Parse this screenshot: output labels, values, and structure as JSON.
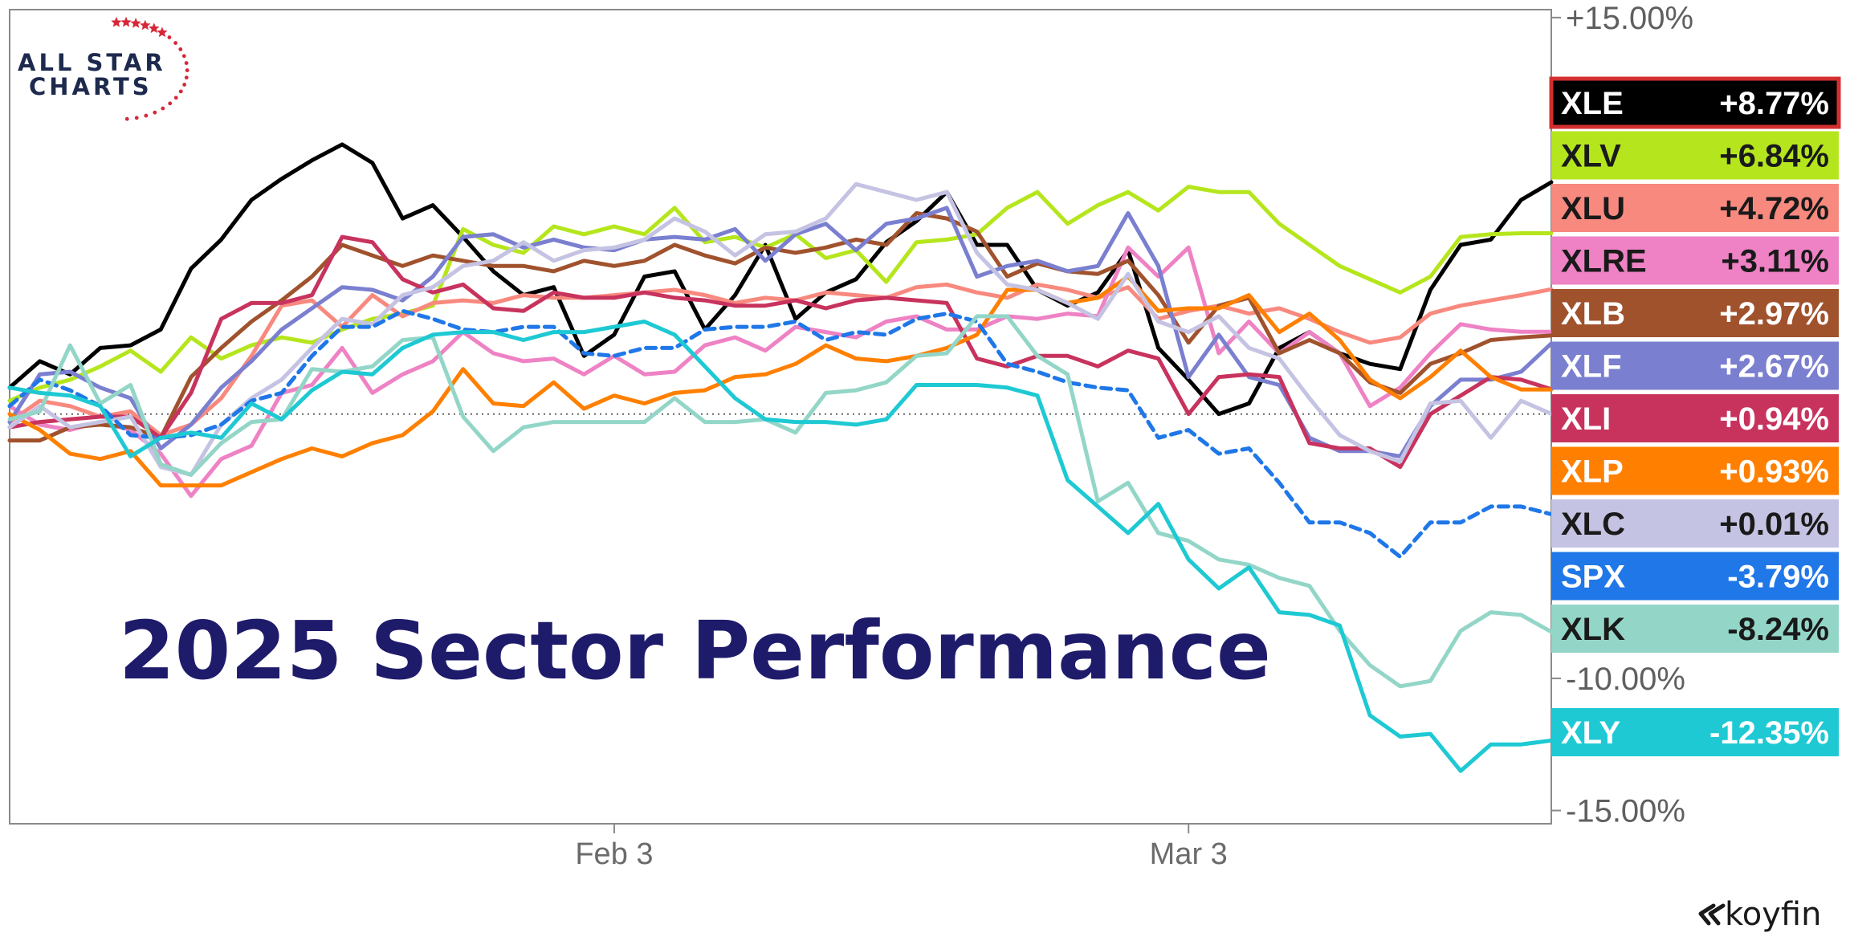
{
  "logo": {
    "line1": "ALL STAR",
    "line2": "CHARTS"
  },
  "brand": {
    "name": "koyfin"
  },
  "chart_data": {
    "type": "line",
    "title": "2025 Sector Performance",
    "xlabel": "",
    "ylabel": "",
    "x_ticks": [
      {
        "label": "Feb 3",
        "index": 20
      },
      {
        "label": "Mar 3",
        "index": 39
      }
    ],
    "y_ticks": [
      {
        "label": "+15.00%",
        "value": 15
      },
      {
        "label": "-10.00%",
        "value": -10
      },
      {
        "label": "-15.00%",
        "value": -15
      }
    ],
    "ylim": [
      -15.5,
      15.3
    ],
    "baseline": 0,
    "grid": false,
    "legend_position": "right",
    "series": [
      {
        "name": "XLE",
        "label": "+8.77%",
        "color": "#000000",
        "text_color": "#ffffff",
        "border": "#d32f2f",
        "dashed": false,
        "values": [
          1,
          2,
          1.5,
          2.5,
          2.6,
          3.2,
          5.5,
          6.6,
          8.1,
          8.9,
          9.6,
          10.2,
          9.5,
          7.4,
          7.9,
          6.7,
          5.4,
          4.5,
          4.8,
          2.2,
          3,
          5.2,
          5.4,
          3.2,
          4.5,
          6.4,
          3.6,
          4.6,
          5.1,
          6.5,
          7.3,
          8.4,
          6.4,
          6.4,
          4.7,
          4.1,
          4.6,
          6.2,
          2.5,
          1.3,
          0,
          0.4,
          2.5,
          3.1,
          2.3,
          1.9,
          1.7,
          4.7,
          6.4,
          6.6,
          8.1,
          8.77
        ]
      },
      {
        "name": "XLV",
        "label": "+6.84%",
        "color": "#b5e61d",
        "text_color": "#1a1a1a",
        "dashed": false,
        "values": [
          0.5,
          1,
          1.3,
          1.8,
          2.4,
          1.6,
          2.9,
          2.1,
          2.6,
          2.9,
          2.7,
          3.2,
          3.6,
          3.8,
          4.1,
          7,
          6.4,
          6.1,
          7.1,
          6.8,
          7.1,
          6.8,
          7.8,
          6.5,
          6.7,
          6.3,
          6.8,
          5.9,
          6.2,
          5,
          6.5,
          6.6,
          6.8,
          7.8,
          8.4,
          7.2,
          7.9,
          8.4,
          7.7,
          8.6,
          8.4,
          8.4,
          7.2,
          6.4,
          5.6,
          5.1,
          4.6,
          5.2,
          6.7,
          6.8,
          6.84,
          6.84
        ]
      },
      {
        "name": "XLU",
        "label": "+4.72%",
        "color": "#f8897e",
        "text_color": "#1a1a1a",
        "dashed": false,
        "values": [
          -0.3,
          0.5,
          0.3,
          -0.1,
          0.1,
          -0.8,
          -0.4,
          0.6,
          2.2,
          4.1,
          4.3,
          3.3,
          4.5,
          3.7,
          4.2,
          4.3,
          4.2,
          4.5,
          4.4,
          4.4,
          4.5,
          4.6,
          4.7,
          4.5,
          4.2,
          4.4,
          4.3,
          4.6,
          4.5,
          4.4,
          4.8,
          4.9,
          4.6,
          4.4,
          4.9,
          4.7,
          4.4,
          4.8,
          3.6,
          3.9,
          4.1,
          3.8,
          4,
          3.6,
          3.1,
          2.7,
          2.9,
          3.8,
          4.1,
          4.3,
          4.5,
          4.72
        ]
      },
      {
        "name": "XLRE",
        "label": "+3.11%",
        "color": "#ee82c4",
        "text_color": "#1a1a1a",
        "dashed": false,
        "values": [
          0.3,
          -0.4,
          -0.6,
          -0.3,
          -0.6,
          -1.5,
          -3.1,
          -1.7,
          -1.2,
          0.8,
          1.1,
          2.5,
          0.8,
          1.5,
          2,
          3.1,
          2.3,
          2,
          2.1,
          1.5,
          2.2,
          1.5,
          1.6,
          2.6,
          2.9,
          2.4,
          3.3,
          3.1,
          2.9,
          3.5,
          3.7,
          3.2,
          3.2,
          3.7,
          3.6,
          3.8,
          3.7,
          6.3,
          5.2,
          6.3,
          2.3,
          3.5,
          2.3,
          3.1,
          2.3,
          0.3,
          1,
          2.3,
          3.4,
          3.2,
          3.11,
          3.11
        ]
      },
      {
        "name": "XLB",
        "label": "+2.97%",
        "color": "#a0522d",
        "text_color": "#ffffff",
        "dashed": false,
        "values": [
          -1,
          -1,
          -0.5,
          -0.4,
          -0.5,
          -0.9,
          1.4,
          2.5,
          3.5,
          4.3,
          5.2,
          6.4,
          6,
          5.6,
          6,
          5.8,
          5.6,
          5.6,
          5.4,
          5.8,
          5.6,
          5.8,
          6.4,
          6,
          5.7,
          6.3,
          6.1,
          6.3,
          6.6,
          6.4,
          7.6,
          7.4,
          6.9,
          5.2,
          5.7,
          5.4,
          5.3,
          5.8,
          4.5,
          2.7,
          4.1,
          4.4,
          2.3,
          2.8,
          2.3,
          1.2,
          0.8,
          1.9,
          2.3,
          2.8,
          2.9,
          2.97
        ]
      },
      {
        "name": "XLF",
        "label": "+2.67%",
        "color": "#7a7fd0",
        "text_color": "#ffffff",
        "dashed": false,
        "values": [
          -0.3,
          1.5,
          1.6,
          1,
          0.6,
          -1.3,
          -0.4,
          1,
          2,
          3.2,
          4,
          4.8,
          4.7,
          4.3,
          5.2,
          6.7,
          6.8,
          6.3,
          6.6,
          6.3,
          6.2,
          6.6,
          6.7,
          6.6,
          7,
          5.8,
          6.8,
          7.2,
          6.2,
          7.2,
          7.4,
          7.8,
          5.2,
          5.6,
          5.8,
          5.4,
          5.6,
          7.6,
          5.6,
          1.4,
          3,
          1.4,
          1.1,
          -0.9,
          -1.4,
          -1.4,
          -1.6,
          0.3,
          1.3,
          1.3,
          1.6,
          2.67
        ]
      },
      {
        "name": "XLI",
        "label": "+0.94%",
        "color": "#c8335e",
        "text_color": "#ffffff",
        "dashed": false,
        "values": [
          -0.5,
          -0.3,
          -0.2,
          -0.1,
          -0.1,
          -0.9,
          0.8,
          3.6,
          4.2,
          4.2,
          4.5,
          6.7,
          6.5,
          5.1,
          4.6,
          4.9,
          4,
          3.9,
          4.6,
          4.4,
          4.4,
          4.6,
          4.4,
          4.3,
          4.1,
          4.1,
          4.3,
          4,
          4.3,
          4.4,
          4.3,
          4.2,
          2.1,
          1.8,
          2.2,
          2.2,
          1.8,
          2.4,
          2.1,
          0,
          1.4,
          1.5,
          1.4,
          -1.1,
          -1.3,
          -1.3,
          -2,
          0,
          0.7,
          1.4,
          1.3,
          0.94
        ]
      },
      {
        "name": "XLP",
        "label": "+0.93%",
        "color": "#ff8000",
        "text_color": "#ffffff",
        "dashed": false,
        "values": [
          0,
          -0.6,
          -1.5,
          -1.7,
          -1.4,
          -2.7,
          -2.7,
          -2.7,
          -2.2,
          -1.7,
          -1.3,
          -1.6,
          -1.1,
          -0.8,
          0.1,
          1.7,
          0.4,
          0.3,
          1.2,
          0.2,
          0.7,
          0.4,
          0.8,
          0.9,
          1.4,
          1.5,
          1.9,
          2.6,
          2.1,
          2,
          2.2,
          2.5,
          3,
          4.7,
          4.7,
          4.2,
          4.4,
          5.2,
          3.9,
          4,
          4,
          4.5,
          3.1,
          3.8,
          2.8,
          1.3,
          0.6,
          1.4,
          2.4,
          1.4,
          0.93,
          0.93
        ]
      },
      {
        "name": "XLC",
        "label": "+0.01%",
        "color": "#c5c3e3",
        "text_color": "#1a1a1a",
        "dashed": false,
        "values": [
          -0.5,
          0.3,
          -0.5,
          -0.3,
          -0.1,
          -2,
          -2.3,
          -0.4,
          0.6,
          1.3,
          2.5,
          3.6,
          3.4,
          4.5,
          4.8,
          5.6,
          5.8,
          6.5,
          5.8,
          6.2,
          6.3,
          6.6,
          7.4,
          6.9,
          6,
          6.8,
          6.9,
          7.4,
          8.7,
          8.4,
          8.1,
          8.4,
          6.1,
          4.9,
          4.7,
          4.2,
          3.6,
          5.3,
          3.5,
          3.1,
          3.7,
          2.5,
          2.1,
          0.6,
          -0.8,
          -1.4,
          -1.8,
          0.4,
          0.5,
          -0.9,
          0.5,
          0.01
        ]
      },
      {
        "name": "SPX",
        "label": "-3.79%",
        "color": "#1f77e8",
        "text_color": "#ffffff",
        "dashed": true,
        "values": [
          0.3,
          1.3,
          0.9,
          0.3,
          -0.8,
          -0.9,
          -0.8,
          -0.4,
          0.5,
          0.8,
          2.2,
          3.3,
          3.3,
          3.9,
          3.6,
          3.2,
          3.1,
          3.3,
          3.3,
          2.3,
          2.2,
          2.5,
          2.5,
          3.2,
          3.3,
          3.3,
          3.5,
          2.8,
          3.1,
          3,
          3.6,
          3.8,
          3.5,
          1.9,
          1.6,
          1.2,
          1,
          0.9,
          -0.9,
          -0.6,
          -1.5,
          -1.3,
          -2.6,
          -4.1,
          -4.1,
          -4.5,
          -5.4,
          -4.1,
          -4.1,
          -3.5,
          -3.5,
          -3.79
        ]
      },
      {
        "name": "XLK",
        "label": "-8.24%",
        "color": "#93d6c8",
        "text_color": "#1a1a1a",
        "dashed": false,
        "values": [
          -0.2,
          0.1,
          2.6,
          0.4,
          1.1,
          -1.9,
          -2.3,
          -1.1,
          -0.3,
          -0.2,
          1.7,
          1.6,
          1.8,
          2.8,
          2.9,
          -0.1,
          -1.4,
          -0.5,
          -0.3,
          -0.3,
          -0.3,
          -0.3,
          0.6,
          -0.3,
          -0.3,
          -0.2,
          -0.7,
          0.8,
          0.9,
          1.2,
          2.2,
          2.3,
          3.7,
          3.7,
          2.2,
          1.5,
          -3.3,
          -2.6,
          -4.5,
          -4.8,
          -5.5,
          -5.7,
          -6.2,
          -6.5,
          -8.2,
          -9.5,
          -10.3,
          -10.1,
          -8.2,
          -7.5,
          -7.6,
          -8.24
        ]
      },
      {
        "name": "XLY",
        "label": "-12.35%",
        "color": "#1ec9d3",
        "text_color": "#ffffff",
        "dashed": false,
        "values": [
          1,
          0.8,
          0.7,
          0.3,
          -1.6,
          -0.9,
          -0.7,
          -0.9,
          0.4,
          -0.2,
          0.9,
          1.6,
          1.5,
          2.5,
          3,
          3.1,
          3.1,
          2.8,
          3.1,
          3.1,
          3.3,
          3.5,
          3,
          1.8,
          0.6,
          -0.2,
          -0.3,
          -0.3,
          -0.4,
          -0.2,
          1.1,
          1.1,
          1.1,
          1,
          0.7,
          -2.5,
          -3.5,
          -4.5,
          -3.4,
          -5.5,
          -6.6,
          -5.8,
          -7.5,
          -7.6,
          -8,
          -11.4,
          -12.2,
          -12.1,
          -13.5,
          -12.5,
          -12.5,
          -12.35
        ]
      }
    ]
  }
}
